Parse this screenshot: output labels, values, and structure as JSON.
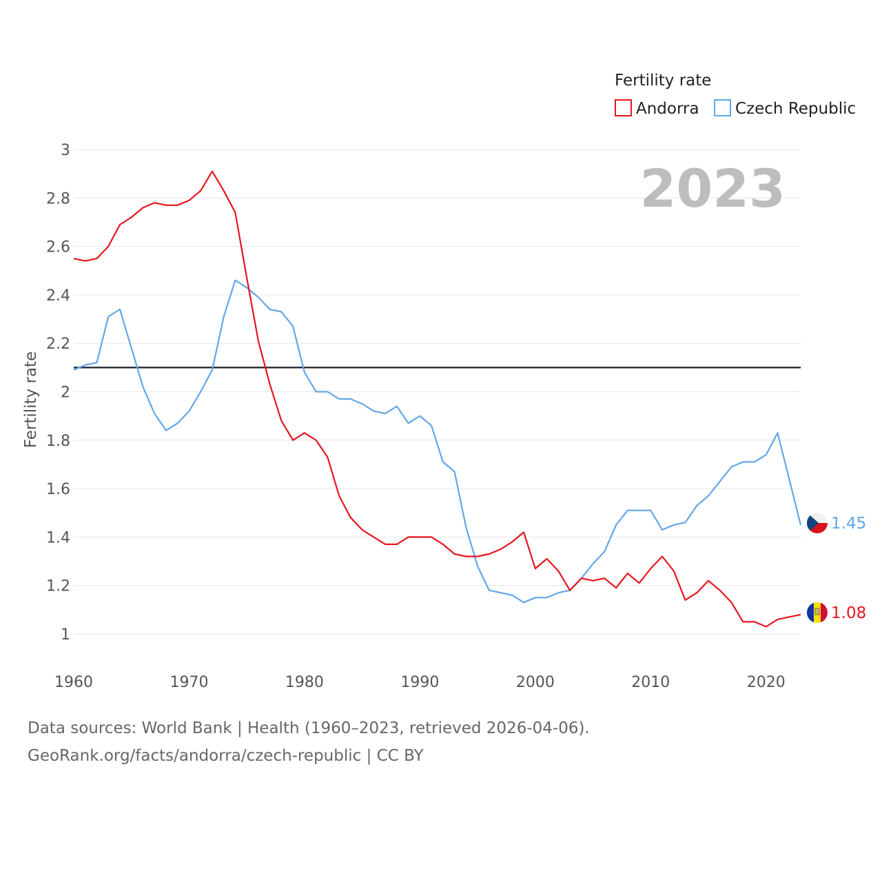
{
  "chart_data": {
    "type": "line",
    "ylabel": "Fertility rate",
    "legend_title": "Fertility rate",
    "current_year": "2023",
    "reference_line": 2.1,
    "ylim": [
      0.9,
      3.0
    ],
    "xlim": [
      1960,
      2023
    ],
    "y_ticks": [
      1,
      1.2,
      1.4,
      1.6,
      1.8,
      2,
      2.2,
      2.4,
      2.6,
      2.8,
      3
    ],
    "y_tick_labels": [
      "1",
      "1.2",
      "1.4",
      "1.6",
      "1.8",
      "2",
      "2.2",
      "2.4",
      "2.6",
      "2.8",
      "3"
    ],
    "x_ticks": [
      1960,
      1970,
      1980,
      1990,
      2000,
      2010,
      2020
    ],
    "x_tick_labels": [
      "1960",
      "1970",
      "1980",
      "1990",
      "2000",
      "2010",
      "2020"
    ],
    "x": [
      1960,
      1961,
      1962,
      1963,
      1964,
      1965,
      1966,
      1967,
      1968,
      1969,
      1970,
      1971,
      1972,
      1973,
      1974,
      1975,
      1976,
      1977,
      1978,
      1979,
      1980,
      1981,
      1982,
      1983,
      1984,
      1985,
      1986,
      1987,
      1988,
      1989,
      1990,
      1991,
      1992,
      1993,
      1994,
      1995,
      1996,
      1997,
      1998,
      1999,
      2000,
      2001,
      2002,
      2003,
      2004,
      2005,
      2006,
      2007,
      2008,
      2009,
      2010,
      2011,
      2012,
      2013,
      2014,
      2015,
      2016,
      2017,
      2018,
      2019,
      2020,
      2021,
      2022,
      2023
    ],
    "series": [
      {
        "name": "Andorra",
        "color": "#e8141c",
        "end_label": "1.08",
        "values": [
          2.55,
          2.54,
          2.55,
          2.6,
          2.69,
          2.72,
          2.76,
          2.78,
          2.77,
          2.77,
          2.79,
          2.83,
          2.91,
          2.83,
          2.74,
          2.47,
          2.21,
          2.03,
          1.88,
          1.8,
          1.83,
          1.8,
          1.73,
          1.57,
          1.48,
          1.43,
          1.4,
          1.37,
          1.37,
          1.4,
          1.4,
          1.4,
          1.37,
          1.33,
          1.32,
          1.32,
          1.33,
          1.35,
          1.38,
          1.42,
          1.27,
          1.31,
          1.26,
          1.18,
          1.23,
          1.22,
          1.23,
          1.19,
          1.25,
          1.21,
          1.27,
          1.32,
          1.26,
          1.14,
          1.17,
          1.22,
          1.18,
          1.13,
          1.05,
          1.05,
          1.03,
          1.06,
          1.07,
          1.08
        ]
      },
      {
        "name": "Czech Republic",
        "color": "#62a6e6",
        "end_label": "1.45",
        "values": [
          2.09,
          2.11,
          2.12,
          2.31,
          2.34,
          2.18,
          2.02,
          1.91,
          1.84,
          1.87,
          1.92,
          2.0,
          2.09,
          2.31,
          2.46,
          2.43,
          2.39,
          2.34,
          2.33,
          2.27,
          2.08,
          2.0,
          2.0,
          1.97,
          1.97,
          1.95,
          1.92,
          1.91,
          1.94,
          1.87,
          1.9,
          1.86,
          1.71,
          1.67,
          1.44,
          1.28,
          1.18,
          1.17,
          1.16,
          1.13,
          1.15,
          1.15,
          1.17,
          1.18,
          1.23,
          1.29,
          1.34,
          1.45,
          1.51,
          1.51,
          1.51,
          1.43,
          1.45,
          1.46,
          1.53,
          1.57,
          1.63,
          1.69,
          1.71,
          1.71,
          1.74,
          1.83,
          1.64,
          1.45
        ]
      }
    ]
  },
  "flags": {
    "andorra": "andorra-flag-icon",
    "czech_republic": "czech-flag-icon"
  },
  "source": {
    "line1": "Data sources: World Bank | Health (1960–2023, retrieved 2026-04-06).",
    "line2": "GeoRank.org/facts/andorra/czech-republic | CC BY"
  }
}
